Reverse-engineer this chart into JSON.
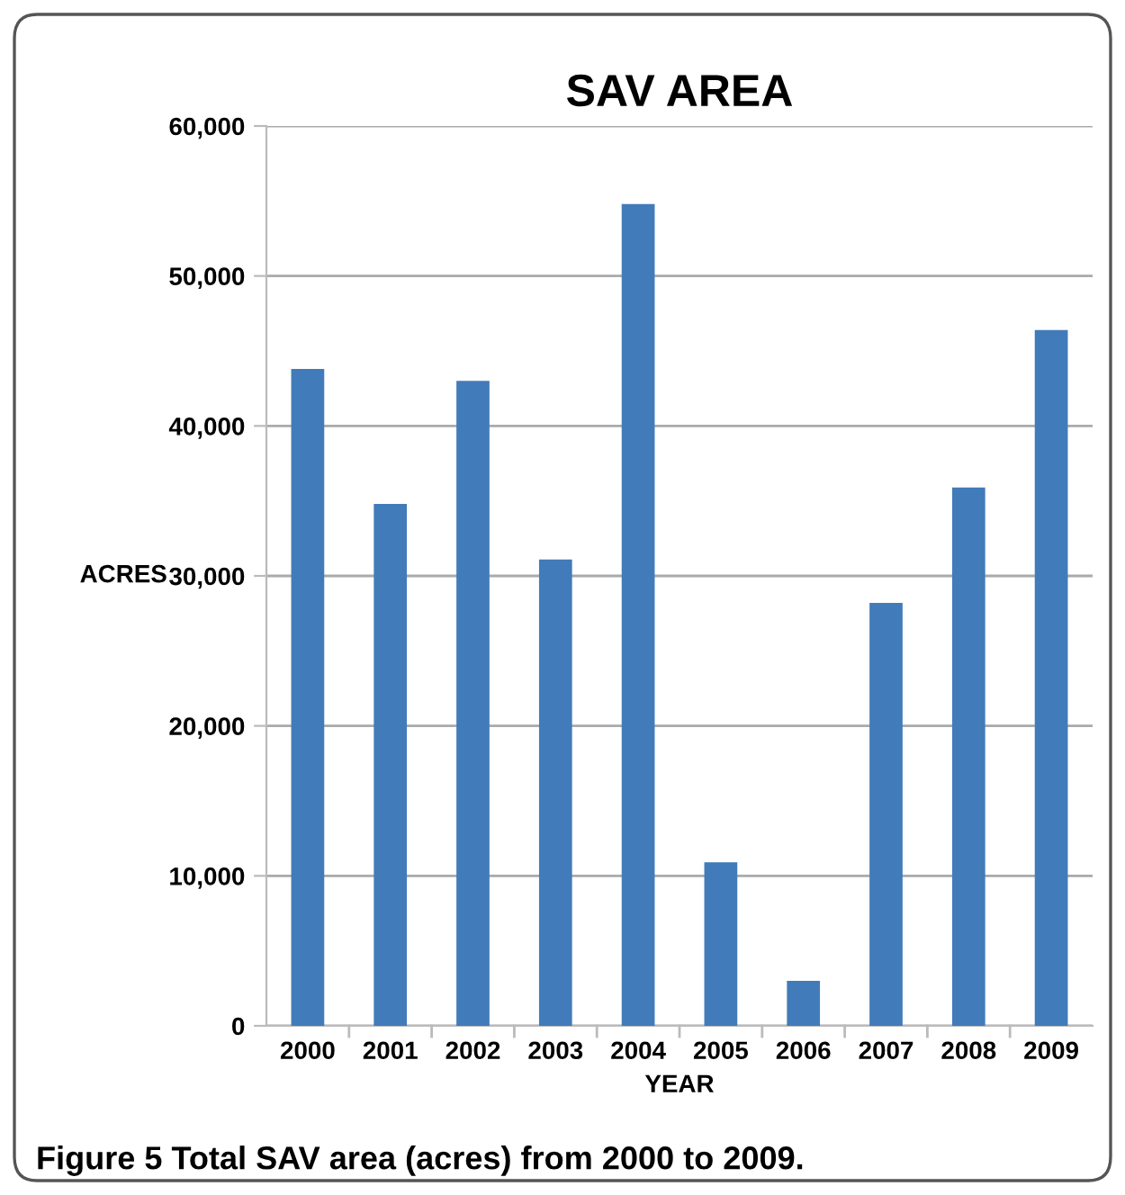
{
  "chart_data": {
    "type": "bar",
    "title": "SAV AREA",
    "xlabel": "YEAR",
    "ylabel": "ACRES",
    "categories": [
      "2000",
      "2001",
      "2002",
      "2003",
      "2004",
      "2005",
      "2006",
      "2007",
      "2008",
      "2009"
    ],
    "values": [
      43800,
      34800,
      43000,
      31100,
      54800,
      10900,
      3000,
      28200,
      35900,
      46400
    ],
    "color": "#427bb9",
    "ylim": [
      0,
      60000
    ],
    "yticks": [
      {
        "value": 0,
        "label": "0"
      },
      {
        "value": 10000,
        "label": "10,000"
      },
      {
        "value": 20000,
        "label": "20,000"
      },
      {
        "value": 30000,
        "label": "30,000"
      },
      {
        "value": 40000,
        "label": "40,000"
      },
      {
        "value": 50000,
        "label": "50,000"
      },
      {
        "value": 60000,
        "label": "60,000"
      }
    ],
    "grid": "y",
    "annotations": [
      "Figure 5 Total SAV area (acres) from 2000 to 2009."
    ]
  }
}
